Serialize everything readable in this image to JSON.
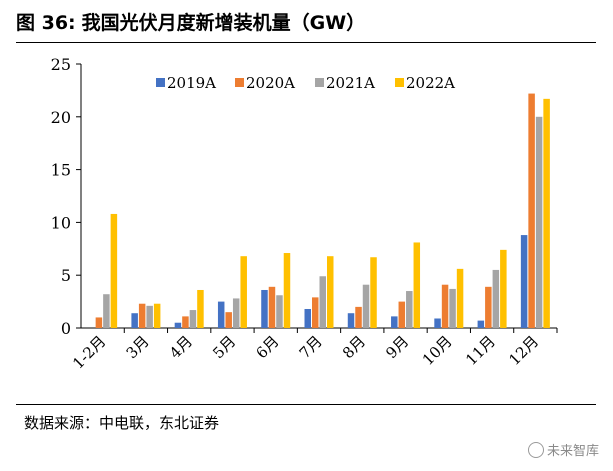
{
  "figure": {
    "number_label": "图 36:",
    "title": "我国光伏月度新增装机量（GW）"
  },
  "source": "数据来源：中电联，东北证券",
  "watermark": "未来智库",
  "chart_data": {
    "type": "bar",
    "categories": [
      "1-2月",
      "3月",
      "4月",
      "5月",
      "6月",
      "7月",
      "8月",
      "9月",
      "10月",
      "11月",
      "12月"
    ],
    "series": [
      {
        "name": "2019A",
        "color": "#4472C4",
        "values": [
          0,
          1.4,
          0.5,
          2.5,
          3.6,
          1.8,
          1.4,
          1.1,
          0.9,
          0.7,
          8.8
        ]
      },
      {
        "name": "2020A",
        "color": "#ED7D31",
        "values": [
          1.0,
          2.3,
          1.1,
          1.5,
          3.9,
          2.9,
          2.0,
          2.5,
          4.1,
          3.9,
          22.2
        ]
      },
      {
        "name": "2021A",
        "color": "#A5A5A5",
        "values": [
          3.2,
          2.1,
          1.7,
          2.8,
          3.1,
          4.9,
          4.1,
          3.5,
          3.7,
          5.5,
          20.0
        ]
      },
      {
        "name": "2022A",
        "color": "#FFC000",
        "values": [
          10.8,
          2.3,
          3.6,
          6.8,
          7.1,
          6.8,
          6.7,
          8.1,
          5.6,
          7.4,
          21.7
        ]
      }
    ],
    "ylim": [
      0,
      25
    ],
    "yticks": [
      0,
      5,
      10,
      15,
      20,
      25
    ],
    "xlabel": "",
    "ylabel": "",
    "grid": false,
    "legend_position": "top-center"
  }
}
